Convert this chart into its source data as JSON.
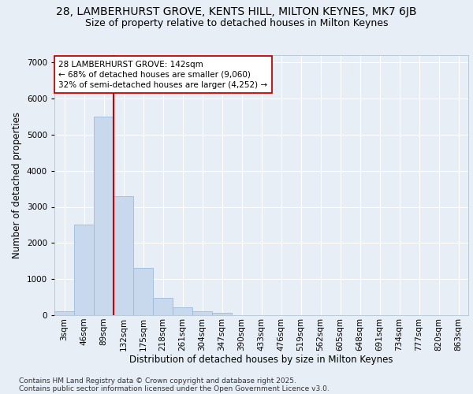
{
  "title_line1": "28, LAMBERHURST GROVE, KENTS HILL, MILTON KEYNES, MK7 6JB",
  "title_line2": "Size of property relative to detached houses in Milton Keynes",
  "xlabel": "Distribution of detached houses by size in Milton Keynes",
  "ylabel": "Number of detached properties",
  "categories": [
    "3sqm",
    "46sqm",
    "89sqm",
    "132sqm",
    "175sqm",
    "218sqm",
    "261sqm",
    "304sqm",
    "347sqm",
    "390sqm",
    "433sqm",
    "476sqm",
    "519sqm",
    "562sqm",
    "605sqm",
    "648sqm",
    "691sqm",
    "734sqm",
    "777sqm",
    "820sqm",
    "863sqm"
  ],
  "values": [
    100,
    2500,
    5500,
    3300,
    1300,
    470,
    220,
    100,
    60,
    0,
    0,
    0,
    0,
    0,
    0,
    0,
    0,
    0,
    0,
    0,
    0
  ],
  "bar_color": "#c8d9ee",
  "bar_edge_color": "#9bbcdc",
  "vline_color": "#cc0000",
  "annotation_text": "28 LAMBERHURST GROVE: 142sqm\n← 68% of detached houses are smaller (9,060)\n32% of semi-detached houses are larger (4,252) →",
  "annotation_box_color": "#ffffff",
  "annotation_box_edge": "#cc0000",
  "ylim": [
    0,
    7200
  ],
  "yticks": [
    0,
    1000,
    2000,
    3000,
    4000,
    5000,
    6000,
    7000
  ],
  "bg_color": "#e8eef5",
  "grid_color": "#ffffff",
  "footer_line1": "Contains HM Land Registry data © Crown copyright and database right 2025.",
  "footer_line2": "Contains public sector information licensed under the Open Government Licence v3.0.",
  "title_fontsize": 10,
  "subtitle_fontsize": 9,
  "axis_label_fontsize": 8.5,
  "tick_fontsize": 7.5,
  "annotation_fontsize": 7.5,
  "footer_fontsize": 6.5
}
